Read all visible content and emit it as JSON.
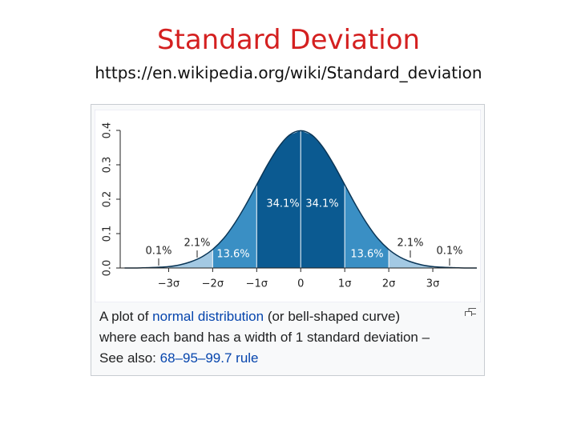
{
  "slide": {
    "title": "Standard Deviation",
    "url": "https://en.wikipedia.org/wiki/Standard_deviation"
  },
  "chart_data": {
    "type": "area",
    "x": [
      -4,
      -3.75,
      -3.5,
      -3.25,
      -3,
      -2.75,
      -2.5,
      -2.25,
      -2,
      -1.75,
      -1.5,
      -1.25,
      -1,
      -0.75,
      -0.5,
      -0.25,
      0,
      0.25,
      0.5,
      0.75,
      1,
      1.25,
      1.5,
      1.75,
      2,
      2.25,
      2.5,
      2.75,
      3,
      3.25,
      3.5,
      3.75,
      4
    ],
    "values": [
      0,
      0,
      0.001,
      0.002,
      0.004,
      0.009,
      0.018,
      0.032,
      0.054,
      0.086,
      0.13,
      0.183,
      0.242,
      0.301,
      0.352,
      0.387,
      0.399,
      0.387,
      0.352,
      0.301,
      0.242,
      0.183,
      0.13,
      0.086,
      0.054,
      0.032,
      0.018,
      0.009,
      0.004,
      0.002,
      0.001,
      0,
      0
    ],
    "color": "#0a3556",
    "bands": {
      "edges": [
        -4,
        -3,
        -2,
        -1,
        0,
        1,
        2,
        3,
        4
      ],
      "values": [
        0.1,
        2.1,
        13.6,
        34.1,
        34.1,
        13.6,
        2.1,
        0.1
      ],
      "value_labels": [
        "0.1%",
        "2.1%",
        "13.6%",
        "34.1%",
        "34.1%",
        "13.6%",
        "2.1%",
        "0.1%"
      ],
      "colors": [
        "#ffffff",
        "#a3c9e3",
        "#3a8fc4",
        "#0b5a91",
        "#0b5a91",
        "#3a8fc4",
        "#a3c9e3",
        "#ffffff"
      ]
    },
    "xlim": [
      -4.1,
      4
    ],
    "xticks": [
      {
        "value": -3,
        "label": "−3σ"
      },
      {
        "value": -2,
        "label": "−2σ"
      },
      {
        "value": -1,
        "label": "−1σ"
      },
      0,
      {
        "value": 1,
        "label": "1σ"
      },
      {
        "value": 2,
        "label": "2σ"
      },
      {
        "value": 3,
        "label": "3σ"
      }
    ],
    "ylim": [
      0,
      0.4
    ],
    "yticks": [
      {
        "value": 0,
        "label": "0.0"
      },
      0.1,
      0.2,
      0.3,
      0.4
    ]
  },
  "caption": {
    "text_1": "A plot of",
    "link_1": "normal distribution",
    "text_2": "(or bell-shaped curve)",
    "text_3": "where each band has a width of 1 standard deviation –",
    "text_4": "See also:",
    "link_2": "68–95–99.7 rule"
  }
}
